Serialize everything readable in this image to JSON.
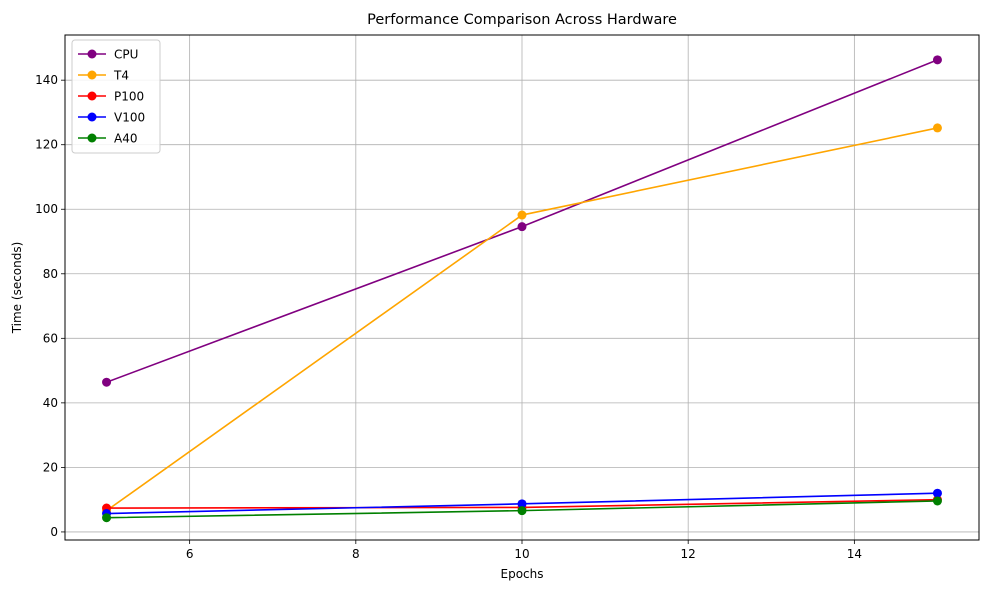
{
  "chart_data": {
    "type": "line",
    "title": "Performance Comparison Across Hardware",
    "xlabel": "Epochs",
    "ylabel": "Time (seconds)",
    "xlim": [
      4.5,
      15.5
    ],
    "ylim": [
      -2.5,
      154
    ],
    "xticks": [
      6,
      8,
      10,
      12,
      14
    ],
    "yticks": [
      0,
      20,
      40,
      60,
      80,
      100,
      120,
      140
    ],
    "grid": true,
    "legend_position": "top-left",
    "x": [
      5,
      10,
      15
    ],
    "series": [
      {
        "name": "CPU",
        "color": "#800080",
        "values": [
          46.4,
          94.6,
          146.3
        ]
      },
      {
        "name": "T4",
        "color": "#ffa500",
        "values": [
          6.6,
          98.2,
          125.2
        ]
      },
      {
        "name": "P100",
        "color": "#ff0000",
        "values": [
          7.4,
          7.6,
          10.0
        ]
      },
      {
        "name": "V100",
        "color": "#0000ff",
        "values": [
          5.7,
          8.7,
          12.0
        ]
      },
      {
        "name": "A40",
        "color": "#008000",
        "values": [
          4.4,
          6.6,
          9.6
        ]
      }
    ]
  }
}
